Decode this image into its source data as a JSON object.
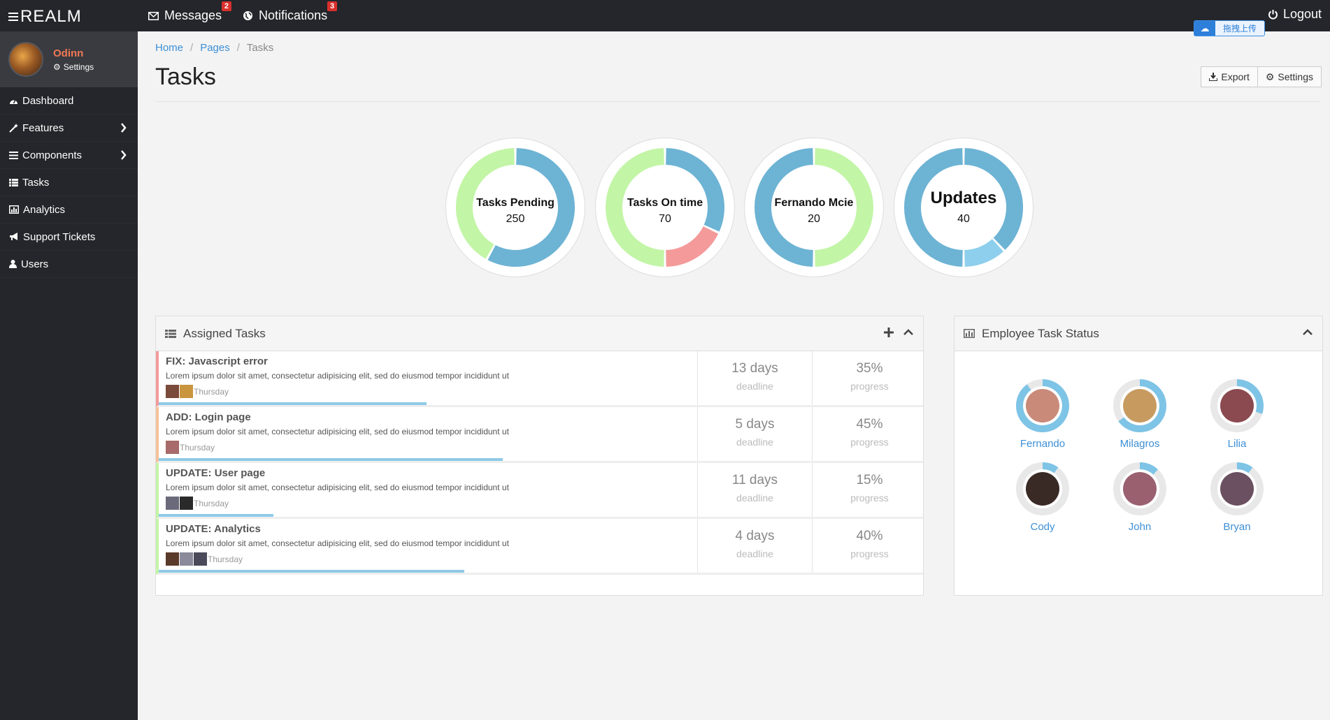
{
  "brand": "REALM",
  "topnav": {
    "messages_label": "Messages",
    "messages_count": "2",
    "notifications_label": "Notifications",
    "notifications_count": "3",
    "logout_label": "Logout"
  },
  "upload_widget": {
    "label": "拖拽上传"
  },
  "profile": {
    "name": "Odinn",
    "settings_label": "Settings"
  },
  "sidebar": {
    "items": [
      {
        "label": "Dashboard",
        "icon": "dashboard-icon",
        "has_submenu": false
      },
      {
        "label": "Features",
        "icon": "magic-wand-icon",
        "has_submenu": true
      },
      {
        "label": "Components",
        "icon": "list-icon",
        "has_submenu": true
      },
      {
        "label": "Tasks",
        "icon": "tasks-icon",
        "has_submenu": false
      },
      {
        "label": "Analytics",
        "icon": "bar-chart-icon",
        "has_submenu": false
      },
      {
        "label": "Support Tickets",
        "icon": "bullhorn-icon",
        "has_submenu": false
      },
      {
        "label": "Users",
        "icon": "user-icon",
        "has_submenu": false
      }
    ]
  },
  "breadcrumb": {
    "home": "Home",
    "pages": "Pages",
    "current": "Tasks"
  },
  "page": {
    "title": "Tasks",
    "export_label": "Export",
    "settings_label": "Settings"
  },
  "gauges": [
    {
      "label": "Tasks Pending",
      "value": "250",
      "segments": [
        {
          "fraction": 0.58,
          "color": "#6db3d4"
        },
        {
          "fraction": 0.42,
          "color": "#c2f5a6"
        }
      ]
    },
    {
      "label": "Tasks On time",
      "value": "70",
      "segments": [
        {
          "fraction": 0.32,
          "color": "#6db3d4"
        },
        {
          "fraction": 0.18,
          "color": "#f49a9a"
        },
        {
          "fraction": 0.5,
          "color": "#c2f5a6"
        }
      ]
    },
    {
      "label": "Fernando Mcie",
      "value": "20",
      "segments": [
        {
          "fraction": 0.5,
          "color": "#c2f5a6"
        },
        {
          "fraction": 0.5,
          "color": "#6db3d4"
        }
      ]
    },
    {
      "label": "Updates",
      "value": "40",
      "segments": [
        {
          "fraction": 0.38,
          "color": "#6db3d4"
        },
        {
          "fraction": 0.12,
          "color": "#8dcfec"
        },
        {
          "fraction": 0.5,
          "color": "#6db3d4"
        }
      ]
    }
  ],
  "assigned_tasks": {
    "title": "Assigned Tasks",
    "deadline_label": "deadline",
    "progress_label": "progress",
    "tasks": [
      {
        "title": "FIX: Javascript error",
        "description": "Lorem ipsum dolor sit amet, consectetur adipisicing elit, sed do eiusmod tempor incididunt ut",
        "day": "Thursday",
        "deadline": "13 days",
        "progress": "35%",
        "progress_fraction": 0.35,
        "accent": "#f49a9a",
        "avatars": 2
      },
      {
        "title": "ADD: Login page",
        "description": "Lorem ipsum dolor sit amet, consectetur adipisicing elit, sed do eiusmod tempor incididunt ut",
        "day": "Thursday",
        "deadline": "5 days",
        "progress": "45%",
        "progress_fraction": 0.45,
        "accent": "#f5c29a",
        "avatars": 1
      },
      {
        "title": "UPDATE: User page",
        "description": "Lorem ipsum dolor sit amet, consectetur adipisicing elit, sed do eiusmod tempor incididunt ut",
        "day": "Thursday",
        "deadline": "11 days",
        "progress": "15%",
        "progress_fraction": 0.15,
        "accent": "#c2f5a6",
        "avatars": 2
      },
      {
        "title": "UPDATE: Analytics",
        "description": "Lorem ipsum dolor sit amet, consectetur adipisicing elit, sed do eiusmod tempor incididunt ut",
        "day": "Thursday",
        "deadline": "4 days",
        "progress": "40%",
        "progress_fraction": 0.4,
        "accent": "#c2f5a6",
        "avatars": 3
      }
    ]
  },
  "employee_status": {
    "title": "Employee Task Status",
    "employees": [
      {
        "name": "Fernando",
        "fraction": 0.9,
        "photo": "#c98a7a"
      },
      {
        "name": "Milagros",
        "fraction": 0.65,
        "photo": "#c79a60"
      },
      {
        "name": "Lilia",
        "fraction": 0.3,
        "photo": "#8a4a50"
      },
      {
        "name": "Cody",
        "fraction": 0.1,
        "photo": "#3a2a26"
      },
      {
        "name": "John",
        "fraction": 0.12,
        "photo": "#9a6070"
      },
      {
        "name": "Bryan",
        "fraction": 0.1,
        "photo": "#6a5060"
      }
    ]
  }
}
